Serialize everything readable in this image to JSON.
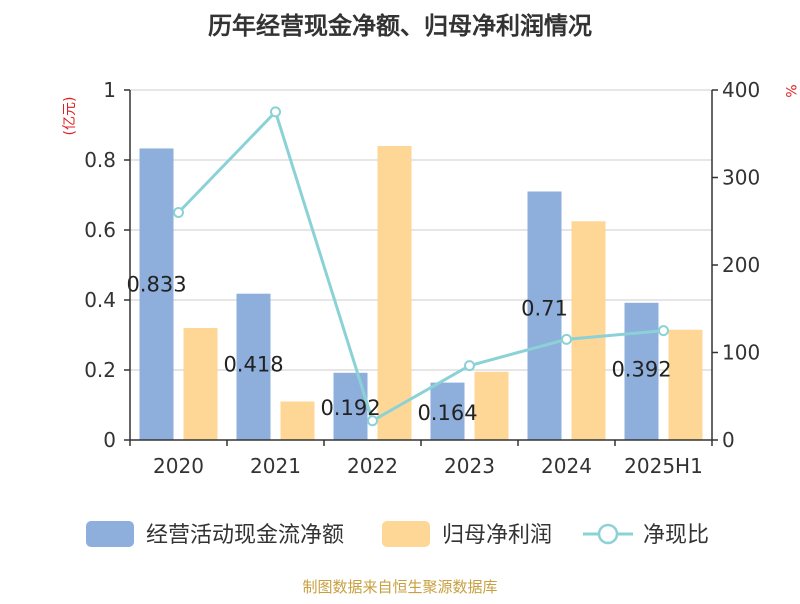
{
  "chart_data": {
    "type": "bar",
    "title": "历年经营现金净额、归母净利润情况",
    "categories": [
      "2020",
      "2021",
      "2022",
      "2023",
      "2024",
      "2025H1"
    ],
    "series": [
      {
        "name": "经营活动现金流净额",
        "kind": "bar",
        "axis": "left",
        "color": "#8eaedc",
        "values": [
          0.833,
          0.418,
          0.192,
          0.164,
          0.71,
          0.392
        ]
      },
      {
        "name": "归母净利润",
        "kind": "bar",
        "axis": "left",
        "color": "#fed797",
        "values": [
          0.32,
          0.11,
          0.84,
          0.195,
          0.625,
          0.315
        ]
      },
      {
        "name": "净现比",
        "kind": "line",
        "axis": "right",
        "color": "#8bd2d6",
        "values": [
          260,
          375,
          22,
          85,
          115,
          125
        ]
      }
    ],
    "data_labels": [
      "0.833",
      "0.418",
      "0.192",
      "0.164",
      "0.71",
      "0.392"
    ],
    "y_left": {
      "unit": "(亿元)",
      "range": [
        0,
        1
      ],
      "ticks": [
        "0",
        "0.2",
        "0.4",
        "0.6",
        "0.8",
        "1"
      ]
    },
    "y_right": {
      "unit": "%",
      "range": [
        0,
        400
      ],
      "ticks": [
        "0",
        "100",
        "200",
        "300",
        "400"
      ]
    },
    "grid": true,
    "legend_placement": "bottom",
    "source": "制图数据来自恒生聚源数据库"
  }
}
